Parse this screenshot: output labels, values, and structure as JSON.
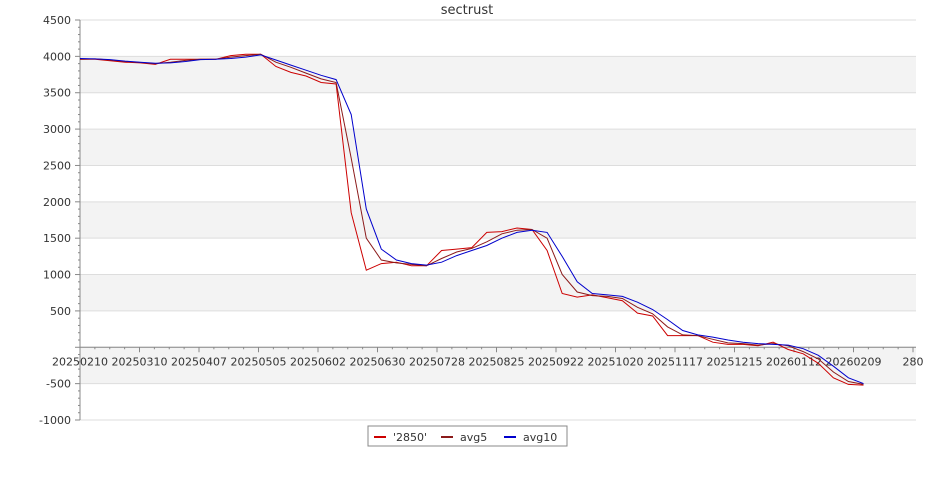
{
  "chart_data": {
    "type": "line",
    "title": "sectrust",
    "xlabel": "",
    "ylabel": "",
    "ylim": [
      -1000,
      4500
    ],
    "yticks": [
      -1000,
      -500,
      500,
      1000,
      1500,
      2000,
      2500,
      3000,
      3500,
      4000,
      4500
    ],
    "xticks": [
      "20250210",
      "20250310",
      "20250407",
      "20250505",
      "20250602",
      "20250630",
      "20250728",
      "20250825",
      "20250922",
      "20251020",
      "20251117",
      "20251215",
      "20260112",
      "20260209",
      "280"
    ],
    "grid": true,
    "legend": "bottom-center",
    "x": [
      "20250210",
      "20250217",
      "20250224",
      "20250303",
      "20250310",
      "20250317",
      "20250324",
      "20250331",
      "20250407",
      "20250414",
      "20250421",
      "20250428",
      "20250505",
      "20250512",
      "20250519",
      "20250526",
      "20250602",
      "20250609",
      "20250616",
      "20250623",
      "20250630",
      "20250707",
      "20250714",
      "20250721",
      "20250728",
      "20250804",
      "20250811",
      "20250818",
      "20250825",
      "20250901",
      "20250908",
      "20250915",
      "20250922",
      "20250929",
      "20251006",
      "20251013",
      "20251020",
      "20251027",
      "20251103",
      "20251110",
      "20251117",
      "20251124",
      "20251201",
      "20251208",
      "20251215",
      "20251222",
      "20251229",
      "20260105",
      "20260112",
      "20260119",
      "20260126",
      "20260202",
      "20260209"
    ],
    "series": [
      {
        "name": "'2850'",
        "color": "#cc0000",
        "values": [
          3960,
          3960,
          3940,
          3920,
          3910,
          3890,
          3960,
          3960,
          3960,
          3960,
          4010,
          4030,
          4030,
          3860,
          3780,
          3730,
          3640,
          3620,
          1850,
          1060,
          1150,
          1170,
          1120,
          1120,
          1330,
          1350,
          1370,
          1580,
          1590,
          1640,
          1620,
          1330,
          740,
          690,
          720,
          680,
          640,
          470,
          430,
          160,
          160,
          160,
          70,
          40,
          40,
          20,
          70,
          -30,
          -90,
          -220,
          -420,
          -510,
          -520
        ]
      },
      {
        "name": "avg5",
        "color": "#8b1a1a",
        "values": [
          3960,
          3965,
          3950,
          3930,
          3915,
          3900,
          3920,
          3945,
          3960,
          3960,
          3990,
          4010,
          4030,
          3920,
          3850,
          3770,
          3690,
          3640,
          2600,
          1500,
          1200,
          1160,
          1140,
          1120,
          1220,
          1310,
          1360,
          1450,
          1560,
          1610,
          1620,
          1500,
          1000,
          760,
          710,
          700,
          670,
          550,
          460,
          280,
          170,
          160,
          110,
          60,
          50,
          30,
          50,
          20,
          -60,
          -160,
          -340,
          -470,
          -510
        ]
      },
      {
        "name": "avg10",
        "color": "#0000cc",
        "values": [
          3970,
          3965,
          3955,
          3935,
          3920,
          3905,
          3910,
          3930,
          3955,
          3960,
          3970,
          3990,
          4020,
          3950,
          3880,
          3810,
          3740,
          3680,
          3200,
          1900,
          1350,
          1200,
          1150,
          1130,
          1170,
          1260,
          1330,
          1400,
          1500,
          1580,
          1610,
          1580,
          1250,
          900,
          740,
          720,
          700,
          620,
          520,
          380,
          230,
          170,
          140,
          100,
          70,
          50,
          40,
          30,
          -20,
          -110,
          -260,
          -420,
          -500
        ]
      }
    ]
  }
}
